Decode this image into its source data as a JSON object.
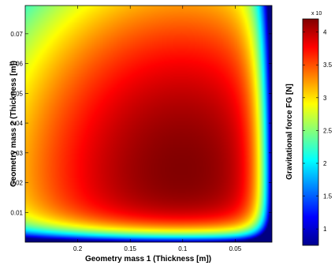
{
  "chart_data": {
    "type": "heatmap",
    "colormap": "jet",
    "xlabel": "Geometry mass 1 (Thickness [m])",
    "ylabel": "Geometry mass 2 (Thickness [m])",
    "colorbar_label": "Gravitational force FG [N]",
    "colorbar_exponent_label": "x 10",
    "x_axis_reversed": true,
    "x_ticks": [
      "0.2",
      "0.15",
      "0.1",
      "0.05"
    ],
    "y_ticks": [
      "0.07",
      "0.06",
      "0.05",
      "0.04",
      "0.03",
      "0.02",
      "0.01"
    ],
    "colorbar_ticks": [
      "4",
      "3.5",
      "3",
      "2.5",
      "2",
      "1.5",
      "1"
    ],
    "colorbar_range": [
      0.75,
      4.2
    ],
    "peak": {
      "x": 0.1,
      "y": 0.022,
      "value": 4.2
    },
    "grid": false
  }
}
